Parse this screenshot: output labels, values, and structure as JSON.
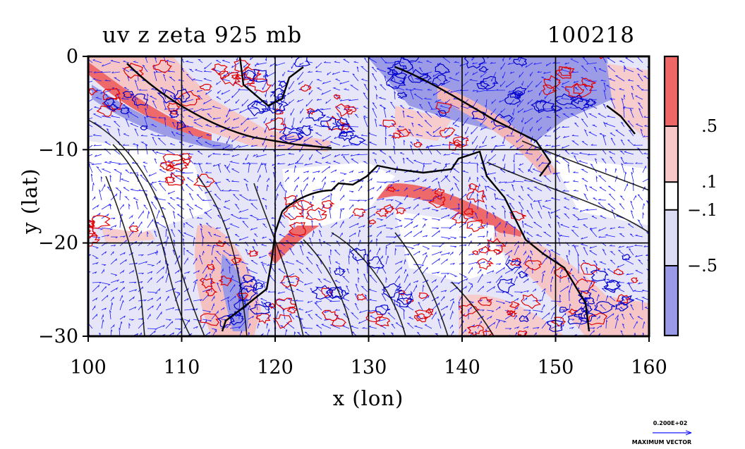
{
  "chart_data": {
    "type": "heatmap",
    "title": "uv z zeta 925 mb",
    "date_label": "100218",
    "xlabel": "x (lon)",
    "ylabel": "y (lat)",
    "xlim": [
      100,
      160
    ],
    "ylim": [
      -30,
      0
    ],
    "x_ticks": [
      100,
      110,
      120,
      130,
      140,
      150,
      160
    ],
    "y_ticks": [
      0,
      -10,
      -20,
      -30
    ],
    "x_tick_labels": [
      "100",
      "110",
      "120",
      "130",
      "140",
      "150",
      "160"
    ],
    "y_tick_labels": [
      "0",
      "−10",
      "−20",
      "−30"
    ],
    "grid": true,
    "colorbar": {
      "tick_labels": [
        ".5",
        ".1",
        "−.1",
        "−.5"
      ],
      "levels": [
        1.0,
        0.5,
        0.1,
        -0.1,
        -0.5,
        -1.0
      ],
      "colors": [
        "#ee6666",
        "#f8c8c8",
        "#ffffff",
        "#dcdcf4",
        "#9999e8"
      ]
    },
    "vector_legend": {
      "value_label": "0.200E+02",
      "caption": "MAXIMUM VECTOR"
    },
    "colors": {
      "positive_contour": "#e00000",
      "negative_contour": "#0000cc",
      "vectors": "#1a1aff",
      "geopotential_contour": "#000000"
    }
  }
}
